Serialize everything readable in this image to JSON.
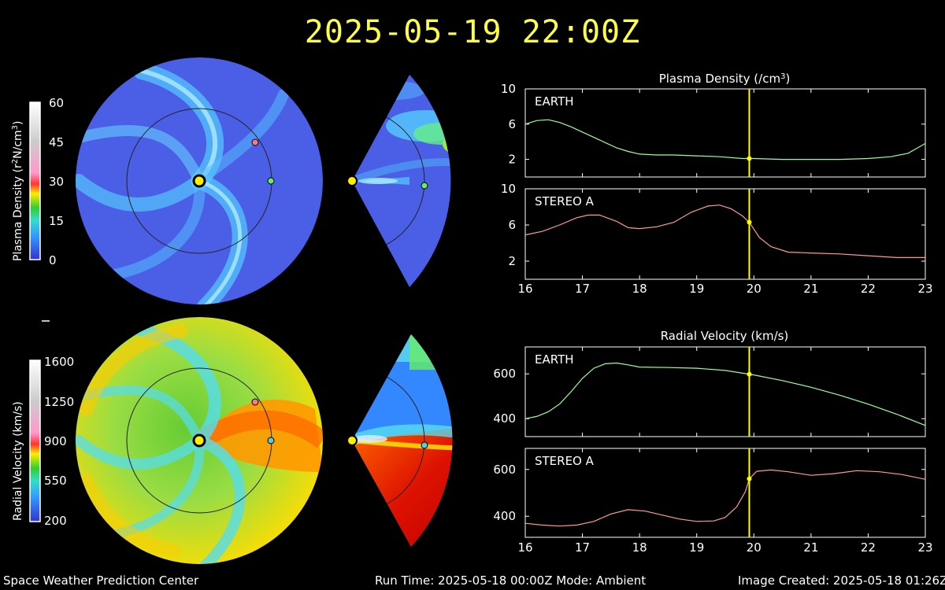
{
  "title": "2025-05-19 22:00Z",
  "colors": {
    "background": "#000000",
    "title": "#ffff44",
    "marker": "#ffff00",
    "earth_line": "#99ff99",
    "stereo_line": "#ff9999"
  },
  "colorbars": {
    "density": {
      "label_main": "Plasma Density (r",
      "label_sup": "2",
      "label_tail": "N/cm",
      "label_sup2": "3",
      "label_close": ")",
      "ticks": [
        "60",
        "45",
        "30",
        "15",
        "0"
      ]
    },
    "velocity": {
      "label": "Radial Velocity (km/s)",
      "ticks": [
        "1600",
        "1250",
        "900",
        "550",
        "200"
      ]
    }
  },
  "footer": {
    "org": "Space Weather Prediction Center",
    "run": "Run Time: 2025-05-18 00:00Z  Mode: Ambient",
    "created": "Image Created: 2025-05-18 01:26Z"
  },
  "chart_data": [
    {
      "type": "line",
      "title": "Plasma Density (/cm",
      "title_sup": "3",
      "title_close": ")",
      "xlim": [
        16,
        23
      ],
      "xticks": [
        "16",
        "17",
        "18",
        "19",
        "20",
        "21",
        "22",
        "23"
      ],
      "marker_x": 19.92,
      "panels": [
        {
          "label": "EARTH",
          "ylim": [
            0,
            10
          ],
          "yticks": [
            "10",
            "6",
            "2"
          ],
          "ytick_values": [
            10,
            6,
            2
          ],
          "series": {
            "color": "#99ff99",
            "x": [
              16.0,
              16.2,
              16.4,
              16.6,
              16.8,
              17.0,
              17.2,
              17.4,
              17.6,
              17.8,
              18.0,
              18.3,
              18.6,
              19.0,
              19.4,
              19.8,
              20.0,
              20.5,
              21.0,
              21.5,
              22.0,
              22.4,
              22.7,
              23.0
            ],
            "y": [
              6.0,
              6.4,
              6.5,
              6.2,
              5.7,
              5.1,
              4.5,
              3.9,
              3.3,
              2.9,
              2.6,
              2.5,
              2.5,
              2.4,
              2.3,
              2.1,
              2.1,
              2.0,
              2.0,
              2.0,
              2.1,
              2.3,
              2.7,
              3.8
            ]
          }
        },
        {
          "label": "STEREO A",
          "ylim": [
            0,
            10
          ],
          "yticks": [
            "10",
            "6",
            "2"
          ],
          "ytick_values": [
            10,
            6,
            2
          ],
          "series": {
            "color": "#ff9999",
            "x": [
              16.0,
              16.3,
              16.6,
              16.9,
              17.1,
              17.3,
              17.6,
              17.8,
              18.0,
              18.3,
              18.6,
              18.9,
              19.2,
              19.4,
              19.6,
              19.8,
              19.92,
              20.1,
              20.3,
              20.6,
              21.0,
              21.5,
              22.0,
              22.5,
              23.0
            ],
            "y": [
              4.9,
              5.3,
              6.0,
              6.8,
              7.1,
              7.1,
              6.4,
              5.7,
              5.6,
              5.8,
              6.3,
              7.4,
              8.1,
              8.2,
              7.8,
              7.0,
              6.3,
              4.6,
              3.6,
              3.0,
              2.9,
              2.8,
              2.6,
              2.4,
              2.4
            ]
          }
        }
      ]
    },
    {
      "type": "line",
      "title": "Radial Velocity (km/s)",
      "xlim": [
        16,
        23
      ],
      "xticks": [
        "16",
        "17",
        "18",
        "19",
        "20",
        "21",
        "22",
        "23"
      ],
      "marker_x": 19.92,
      "panels": [
        {
          "label": "EARTH",
          "ylim": [
            320,
            720
          ],
          "yticks": [
            "600",
            "400"
          ],
          "ytick_values": [
            600,
            400
          ],
          "series": {
            "color": "#99ff99",
            "x": [
              16.0,
              16.2,
              16.4,
              16.6,
              16.8,
              17.0,
              17.2,
              17.4,
              17.6,
              17.8,
              18.0,
              18.5,
              19.0,
              19.5,
              20.0,
              20.5,
              21.0,
              21.5,
              22.0,
              22.5,
              23.0
            ],
            "y": [
              400,
              410,
              430,
              465,
              520,
              580,
              625,
              645,
              648,
              640,
              630,
              628,
              625,
              615,
              595,
              570,
              540,
              505,
              465,
              420,
              370
            ]
          }
        },
        {
          "label": "STEREO A",
          "ylim": [
            310,
            690
          ],
          "yticks": [
            "600",
            "400"
          ],
          "ytick_values": [
            600,
            400
          ],
          "series": {
            "color": "#ff9999",
            "x": [
              16.0,
              16.3,
              16.6,
              16.9,
              17.2,
              17.5,
              17.8,
              18.1,
              18.4,
              18.7,
              19.0,
              19.3,
              19.5,
              19.7,
              19.85,
              19.92,
              20.05,
              20.3,
              20.6,
              21.0,
              21.4,
              21.8,
              22.2,
              22.6,
              23.0
            ],
            "y": [
              370,
              362,
              358,
              362,
              378,
              410,
              428,
              422,
              405,
              388,
              378,
              380,
              395,
              440,
              505,
              560,
              592,
              598,
              590,
              575,
              582,
              595,
              590,
              578,
              558
            ]
          }
        }
      ]
    }
  ]
}
